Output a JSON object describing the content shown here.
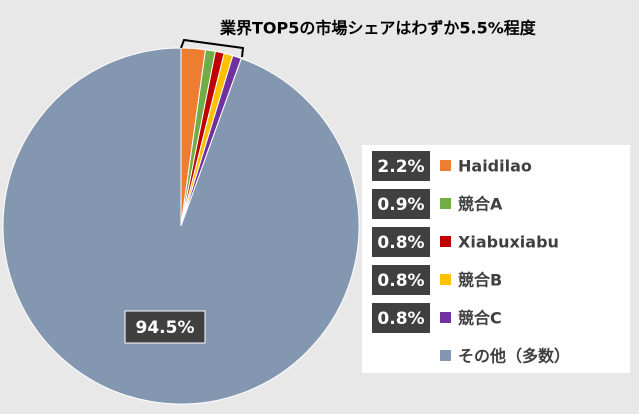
{
  "chart_data": {
    "type": "pie",
    "annotation": "業界TOP5の市場シェアはわずか5.5%程度",
    "categories": [
      "Haidilao",
      "競合A",
      "Xiabuxiabu",
      "競合B",
      "競合C",
      "その他（多数）"
    ],
    "values": [
      2.2,
      0.9,
      0.8,
      0.8,
      0.8,
      94.5
    ],
    "value_labels": [
      "2.2%",
      "0.9%",
      "0.8%",
      "0.8%",
      "0.8%",
      "94.5%"
    ],
    "colors": [
      "#ed7d31",
      "#70ad47",
      "#c00000",
      "#ffc000",
      "#7030a0",
      "#8497b0"
    ]
  }
}
